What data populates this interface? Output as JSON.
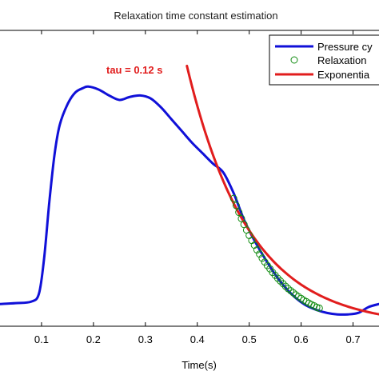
{
  "chart_data": {
    "type": "line",
    "title": "Relaxation time constant estimation",
    "xlabel": "Time(s)",
    "ylabel": "",
    "xlim": [
      0.02,
      0.75
    ],
    "ylim": [
      0,
      1
    ],
    "x_ticks": [
      0.1,
      0.2,
      0.3,
      0.4,
      0.5,
      0.6,
      0.7
    ],
    "x_tick_labels": [
      "0.1",
      "0.2",
      "0.3",
      "0.4",
      "0.5",
      "0.6",
      "0.7"
    ],
    "grid": false,
    "legend_position": "top-right",
    "annotation": {
      "text": "tau = 0.12 s",
      "color": "#e11d1d"
    },
    "series": [
      {
        "name": "Pressure cy",
        "kind": "line",
        "color": "#1010d8",
        "points": [
          [
            0.02,
            0.075
          ],
          [
            0.05,
            0.078
          ],
          [
            0.08,
            0.083
          ],
          [
            0.095,
            0.11
          ],
          [
            0.105,
            0.23
          ],
          [
            0.115,
            0.42
          ],
          [
            0.125,
            0.58
          ],
          [
            0.135,
            0.68
          ],
          [
            0.15,
            0.75
          ],
          [
            0.165,
            0.79
          ],
          [
            0.18,
            0.805
          ],
          [
            0.19,
            0.81
          ],
          [
            0.21,
            0.8
          ],
          [
            0.23,
            0.78
          ],
          [
            0.25,
            0.765
          ],
          [
            0.27,
            0.775
          ],
          [
            0.29,
            0.78
          ],
          [
            0.31,
            0.77
          ],
          [
            0.33,
            0.74
          ],
          [
            0.35,
            0.7
          ],
          [
            0.37,
            0.66
          ],
          [
            0.39,
            0.62
          ],
          [
            0.41,
            0.585
          ],
          [
            0.43,
            0.55
          ],
          [
            0.45,
            0.52
          ],
          [
            0.47,
            0.45
          ],
          [
            0.49,
            0.36
          ],
          [
            0.51,
            0.29
          ],
          [
            0.53,
            0.23
          ],
          [
            0.55,
            0.175
          ],
          [
            0.57,
            0.13
          ],
          [
            0.59,
            0.095
          ],
          [
            0.61,
            0.07
          ],
          [
            0.63,
            0.055
          ],
          [
            0.65,
            0.045
          ],
          [
            0.67,
            0.04
          ],
          [
            0.69,
            0.04
          ],
          [
            0.71,
            0.045
          ],
          [
            0.73,
            0.065
          ],
          [
            0.75,
            0.075
          ]
        ]
      },
      {
        "name": "Relaxation",
        "kind": "markers",
        "color": "#118c11",
        "points": [
          [
            0.47,
            0.432
          ],
          [
            0.475,
            0.408
          ],
          [
            0.48,
            0.385
          ],
          [
            0.485,
            0.364
          ],
          [
            0.49,
            0.344
          ],
          [
            0.495,
            0.325
          ],
          [
            0.5,
            0.307
          ],
          [
            0.505,
            0.29
          ],
          [
            0.51,
            0.274
          ],
          [
            0.515,
            0.258
          ],
          [
            0.52,
            0.244
          ],
          [
            0.525,
            0.23
          ],
          [
            0.53,
            0.217
          ],
          [
            0.535,
            0.205
          ],
          [
            0.54,
            0.194
          ],
          [
            0.545,
            0.182
          ],
          [
            0.55,
            0.172
          ],
          [
            0.555,
            0.162
          ],
          [
            0.56,
            0.153
          ],
          [
            0.565,
            0.144
          ],
          [
            0.57,
            0.135
          ],
          [
            0.575,
            0.127
          ],
          [
            0.58,
            0.12
          ],
          [
            0.585,
            0.113
          ],
          [
            0.59,
            0.106
          ],
          [
            0.595,
            0.1
          ],
          [
            0.6,
            0.094
          ],
          [
            0.605,
            0.088
          ],
          [
            0.61,
            0.083
          ],
          [
            0.615,
            0.078
          ],
          [
            0.62,
            0.073
          ],
          [
            0.625,
            0.069
          ],
          [
            0.63,
            0.064
          ],
          [
            0.635,
            0.061
          ]
        ]
      },
      {
        "name": "Exponentia",
        "kind": "line",
        "color": "#e11d1d",
        "points": [
          [
            0.38,
            0.88
          ],
          [
            0.39,
            0.795
          ],
          [
            0.4,
            0.72
          ],
          [
            0.41,
            0.652
          ],
          [
            0.42,
            0.592
          ],
          [
            0.43,
            0.54
          ],
          [
            0.44,
            0.49
          ],
          [
            0.45,
            0.45
          ],
          [
            0.46,
            0.41
          ],
          [
            0.47,
            0.432
          ],
          [
            0.48,
            0.385
          ],
          [
            0.49,
            0.344
          ],
          [
            0.5,
            0.307
          ],
          [
            0.52,
            0.244
          ],
          [
            0.54,
            0.194
          ],
          [
            0.56,
            0.153
          ],
          [
            0.58,
            0.12
          ],
          [
            0.6,
            0.094
          ],
          [
            0.62,
            0.073
          ],
          [
            0.64,
            0.056
          ],
          [
            0.66,
            0.044
          ],
          [
            0.68,
            0.034
          ],
          [
            0.7,
            0.026
          ],
          [
            0.72,
            0.02
          ],
          [
            0.75,
            0.013
          ]
        ]
      }
    ]
  }
}
